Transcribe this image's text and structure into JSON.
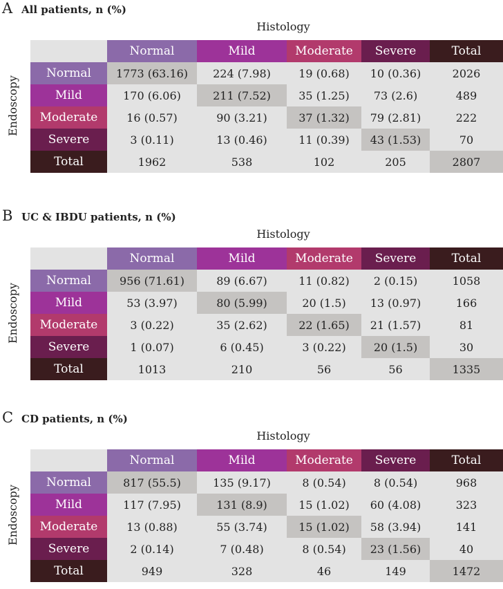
{
  "col_headers": [
    "Normal",
    "Mild",
    "Moderate",
    "Severe",
    "Total"
  ],
  "row_headers": [
    "Normal",
    "Mild",
    "Moderate",
    "Severe",
    "Total"
  ],
  "histology_label": "Histology",
  "endoscopy_label": "Endoscopy",
  "colors": {
    "normal": "#8b6aa9",
    "mild": "#9d3399",
    "moderate": "#b23a6c",
    "severe": "#6a1e4e",
    "total": "#3a1c1e",
    "cell": "#e3e3e3",
    "diagonal": "#c5c3c1"
  },
  "panels": [
    {
      "letter": "A",
      "title": "All patients, n (%)",
      "rows": [
        [
          "1773 (63.16)",
          "224 (7.98)",
          "19 (0.68)",
          "10 (0.36)",
          "2026"
        ],
        [
          "170 (6.06)",
          "211 (7.52)",
          "35 (1.25)",
          "73 (2.6)",
          "489"
        ],
        [
          "16 (0.57)",
          "90 (3.21)",
          "37 (1.32)",
          "79 (2.81)",
          "222"
        ],
        [
          "3 (0.11)",
          "13 (0.46)",
          "11 (0.39)",
          "43 (1.53)",
          "70"
        ],
        [
          "1962",
          "538",
          "102",
          "205",
          "2807"
        ]
      ]
    },
    {
      "letter": "B",
      "title": "UC & IBDU patients, n (%)",
      "rows": [
        [
          "956 (71.61)",
          "89 (6.67)",
          "11 (0.82)",
          "2 (0.15)",
          "1058"
        ],
        [
          "53 (3.97)",
          "80 (5.99)",
          "20 (1.5)",
          "13 (0.97)",
          "166"
        ],
        [
          "3 (0.22)",
          "35 (2.62)",
          "22 (1.65)",
          "21 (1.57)",
          "81"
        ],
        [
          "1 (0.07)",
          "6 (0.45)",
          "3 (0.22)",
          "20 (1.5)",
          "30"
        ],
        [
          "1013",
          "210",
          "56",
          "56",
          "1335"
        ]
      ]
    },
    {
      "letter": "C",
      "title": "CD patients, n (%)",
      "rows": [
        [
          "817 (55.5)",
          "135 (9.17)",
          "8 (0.54)",
          "8 (0.54)",
          "968"
        ],
        [
          "117 (7.95)",
          "131 (8.9)",
          "15 (1.02)",
          "60 (4.08)",
          "323"
        ],
        [
          "13 (0.88)",
          "55 (3.74)",
          "15 (1.02)",
          "58 (3.94)",
          "141"
        ],
        [
          "2 (0.14)",
          "7 (0.48)",
          "8 (0.54)",
          "23 (1.56)",
          "40"
        ],
        [
          "949",
          "328",
          "46",
          "149",
          "1472"
        ]
      ]
    }
  ]
}
